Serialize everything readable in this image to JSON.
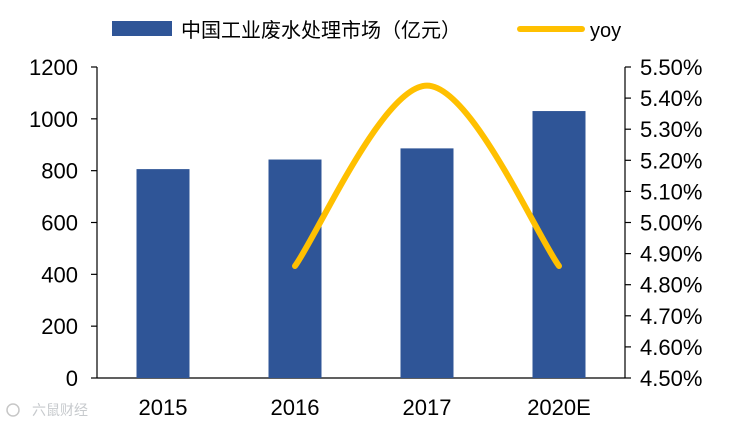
{
  "chart_data": {
    "type": "bar",
    "categories": [
      "2015",
      "2016",
      "2017",
      "2020E"
    ],
    "series": [
      {
        "name": "中国工业废水处理市场（亿元）",
        "kind": "bar",
        "axis": "left",
        "color": "#2f5597",
        "values": [
          806,
          843,
          886,
          1030
        ]
      },
      {
        "name": "yoy",
        "kind": "line",
        "axis": "right",
        "color": "#ffc000",
        "values": [
          null,
          4.86,
          5.44,
          4.86
        ]
      }
    ],
    "left_axis": {
      "ylim": [
        0,
        1200
      ],
      "ticks": [
        0,
        200,
        400,
        600,
        800,
        1000,
        1200
      ],
      "tick_labels": [
        "0",
        "200",
        "400",
        "600",
        "800",
        "1000",
        "1200"
      ]
    },
    "right_axis": {
      "ylim": [
        4.5,
        5.5
      ],
      "ticks": [
        4.5,
        4.6,
        4.7,
        4.8,
        4.9,
        5.0,
        5.1,
        5.2,
        5.3,
        5.4,
        5.5
      ],
      "tick_labels": [
        "4.50%",
        "4.60%",
        "4.70%",
        "4.80%",
        "4.90%",
        "5.00%",
        "5.10%",
        "5.20%",
        "5.30%",
        "5.40%",
        "5.50%"
      ]
    },
    "legend_position": "top",
    "grid": false,
    "watermark": "六鼠财经"
  }
}
